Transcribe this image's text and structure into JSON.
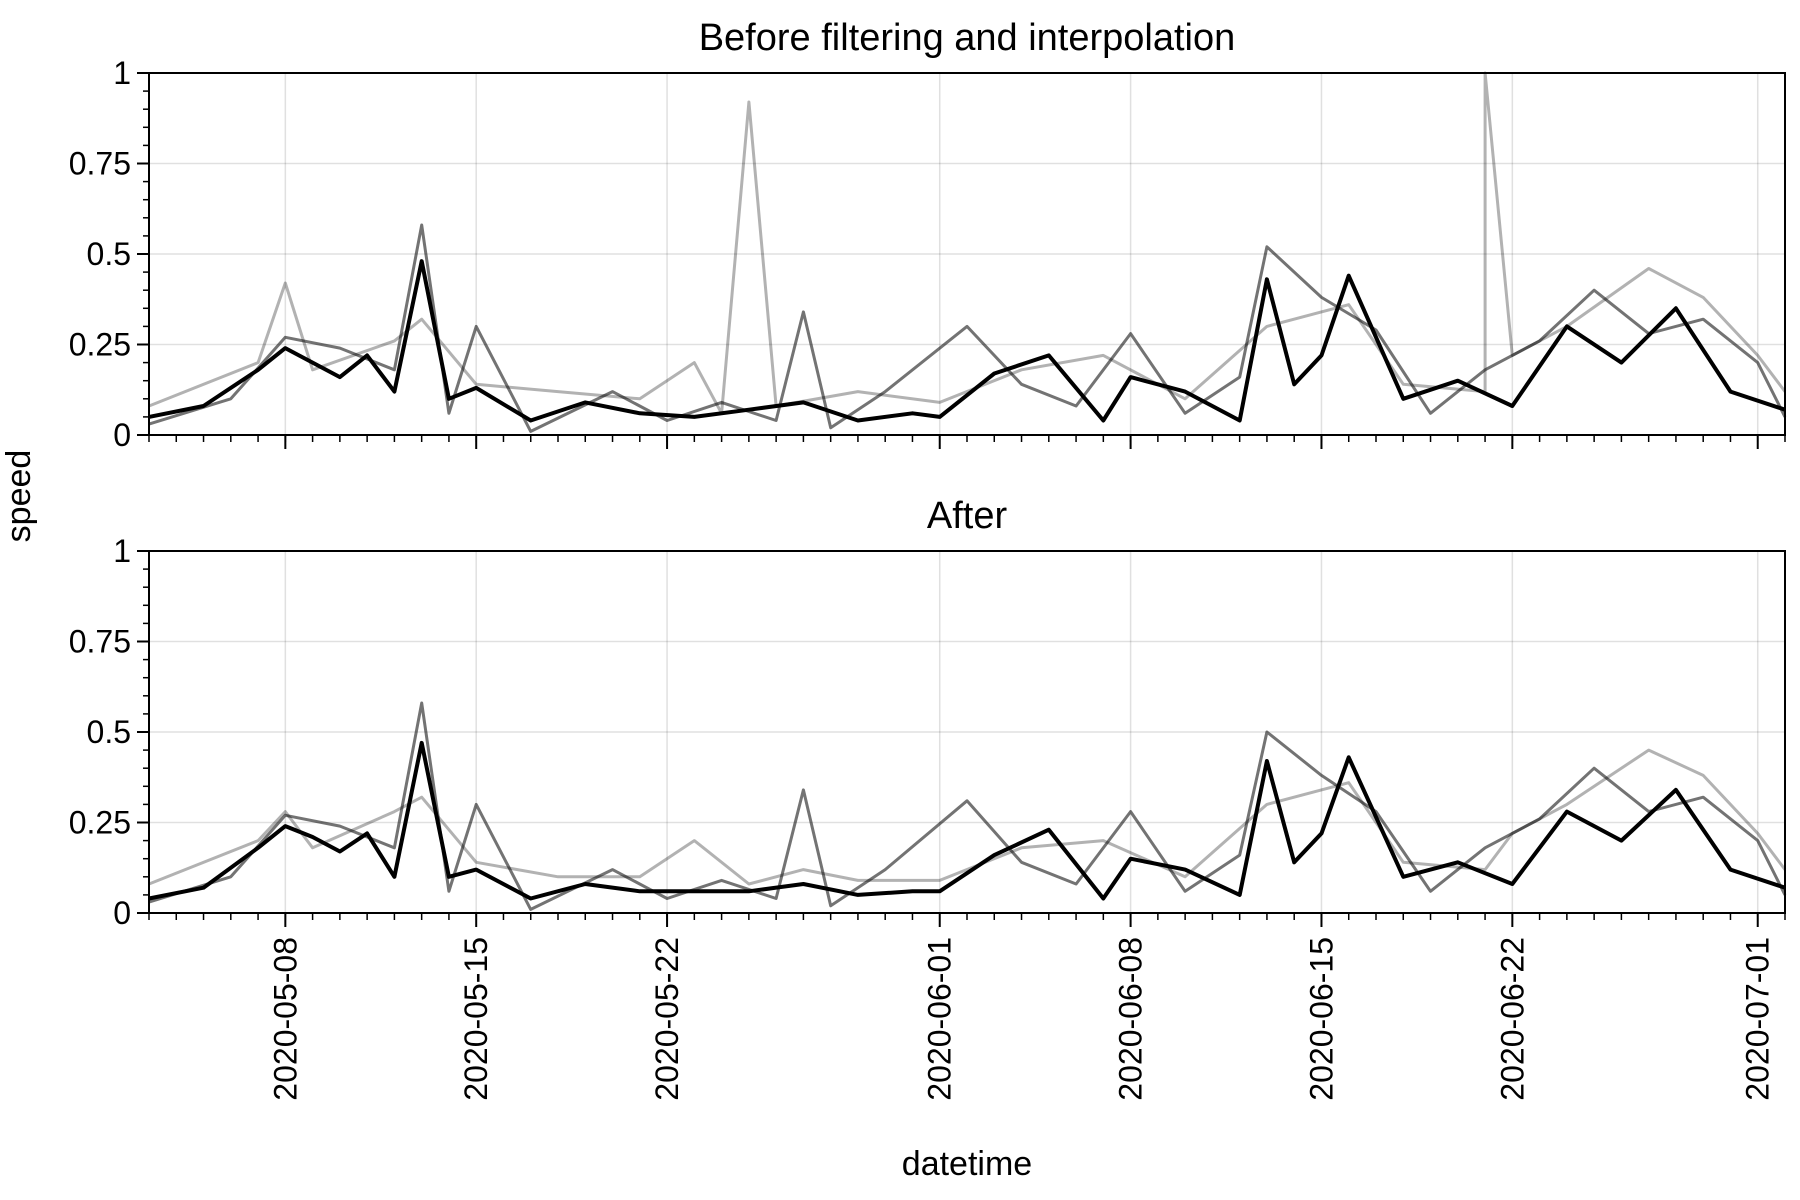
{
  "chart_data": [
    {
      "type": "line",
      "title": "Before filtering and interpolation",
      "ylim": [
        0,
        1
      ],
      "yticks": [
        "0",
        "0.25",
        "0.5",
        "0.75",
        "1"
      ],
      "xlim": [
        "2020-05-03",
        "2020-07-02"
      ],
      "grid": true,
      "x_tick_labels_shown": false,
      "series": [
        {
          "color": "#000000",
          "opacity": 1.0,
          "points": [
            [
              "2020-05-03",
              0.05
            ],
            [
              "2020-05-05",
              0.08
            ],
            [
              "2020-05-07",
              0.18
            ],
            [
              "2020-05-08",
              0.24
            ],
            [
              "2020-05-09",
              0.2
            ],
            [
              "2020-05-10",
              0.16
            ],
            [
              "2020-05-11",
              0.22
            ],
            [
              "2020-05-12",
              0.12
            ],
            [
              "2020-05-13",
              0.48
            ],
            [
              "2020-05-14",
              0.1
            ],
            [
              "2020-05-15",
              0.13
            ],
            [
              "2020-05-17",
              0.04
            ],
            [
              "2020-05-19",
              0.09
            ],
            [
              "2020-05-21",
              0.06
            ],
            [
              "2020-05-23",
              0.05
            ],
            [
              "2020-05-25",
              0.07
            ],
            [
              "2020-05-27",
              0.09
            ],
            [
              "2020-05-29",
              0.04
            ],
            [
              "2020-05-31",
              0.06
            ],
            [
              "2020-06-01",
              0.05
            ],
            [
              "2020-06-03",
              0.17
            ],
            [
              "2020-06-05",
              0.22
            ],
            [
              "2020-06-07",
              0.04
            ],
            [
              "2020-06-08",
              0.16
            ],
            [
              "2020-06-10",
              0.12
            ],
            [
              "2020-06-12",
              0.04
            ],
            [
              "2020-06-13",
              0.43
            ],
            [
              "2020-06-14",
              0.14
            ],
            [
              "2020-06-15",
              0.22
            ],
            [
              "2020-06-16",
              0.44
            ],
            [
              "2020-06-18",
              0.1
            ],
            [
              "2020-06-20",
              0.15
            ],
            [
              "2020-06-22",
              0.08
            ],
            [
              "2020-06-24",
              0.3
            ],
            [
              "2020-06-26",
              0.2
            ],
            [
              "2020-06-28",
              0.35
            ],
            [
              "2020-06-30",
              0.12
            ],
            [
              "2020-07-02",
              0.07
            ]
          ]
        },
        {
          "color": "#000000",
          "opacity": 0.55,
          "points": [
            [
              "2020-05-03",
              0.03
            ],
            [
              "2020-05-06",
              0.1
            ],
            [
              "2020-05-08",
              0.27
            ],
            [
              "2020-05-10",
              0.24
            ],
            [
              "2020-05-12",
              0.18
            ],
            [
              "2020-05-13",
              0.58
            ],
            [
              "2020-05-14",
              0.06
            ],
            [
              "2020-05-15",
              0.3
            ],
            [
              "2020-05-17",
              0.01
            ],
            [
              "2020-05-20",
              0.12
            ],
            [
              "2020-05-22",
              0.04
            ],
            [
              "2020-05-24",
              0.09
            ],
            [
              "2020-05-26",
              0.04
            ],
            [
              "2020-05-27",
              0.34
            ],
            [
              "2020-05-28",
              0.02
            ],
            [
              "2020-05-30",
              0.12
            ],
            [
              "2020-06-02",
              0.3
            ],
            [
              "2020-06-04",
              0.14
            ],
            [
              "2020-06-06",
              0.08
            ],
            [
              "2020-06-08",
              0.28
            ],
            [
              "2020-06-10",
              0.06
            ],
            [
              "2020-06-12",
              0.16
            ],
            [
              "2020-06-13",
              0.52
            ],
            [
              "2020-06-15",
              0.38
            ],
            [
              "2020-06-17",
              0.29
            ],
            [
              "2020-06-19",
              0.06
            ],
            [
              "2020-06-21",
              0.18
            ],
            [
              "2020-06-23",
              0.26
            ],
            [
              "2020-06-25",
              0.4
            ],
            [
              "2020-06-27",
              0.28
            ],
            [
              "2020-06-29",
              0.32
            ],
            [
              "2020-07-01",
              0.2
            ],
            [
              "2020-07-02",
              0.05
            ]
          ]
        },
        {
          "color": "#000000",
          "opacity": 0.3,
          "points": [
            [
              "2020-05-03",
              0.08
            ],
            [
              "2020-05-07",
              0.2
            ],
            [
              "2020-05-08",
              0.42
            ],
            [
              "2020-05-09",
              0.18
            ],
            [
              "2020-05-12",
              0.26
            ],
            [
              "2020-05-13",
              0.32
            ],
            [
              "2020-05-15",
              0.14
            ],
            [
              "2020-05-18",
              0.12
            ],
            [
              "2020-05-21",
              0.1
            ],
            [
              "2020-05-23",
              0.2
            ],
            [
              "2020-05-24",
              0.06
            ],
            [
              "2020-05-25",
              0.92
            ],
            [
              "2020-05-26",
              0.08
            ],
            [
              "2020-05-29",
              0.12
            ],
            [
              "2020-06-01",
              0.09
            ],
            [
              "2020-06-04",
              0.18
            ],
            [
              "2020-06-07",
              0.22
            ],
            [
              "2020-06-10",
              0.1
            ],
            [
              "2020-06-13",
              0.3
            ],
            [
              "2020-06-16",
              0.36
            ],
            [
              "2020-06-18",
              0.14
            ],
            [
              "2020-06-21",
              0.12
            ],
            [
              "2020-06-21",
              1.0
            ],
            [
              "2020-06-22",
              0.22
            ],
            [
              "2020-06-24",
              0.3
            ],
            [
              "2020-06-27",
              0.46
            ],
            [
              "2020-06-29",
              0.38
            ],
            [
              "2020-07-01",
              0.22
            ],
            [
              "2020-07-02",
              0.12
            ]
          ]
        }
      ]
    },
    {
      "type": "line",
      "title": "After",
      "ylim": [
        0,
        1
      ],
      "yticks": [
        "0",
        "0.25",
        "0.5",
        "0.75",
        "1"
      ],
      "xlim": [
        "2020-05-03",
        "2020-07-02"
      ],
      "grid": true,
      "ylabel": "speed",
      "xlabel": "datetime",
      "x_tick_labels": [
        "2020-05-08",
        "2020-05-15",
        "2020-05-22",
        "2020-06-01",
        "2020-06-08",
        "2020-06-15",
        "2020-06-22",
        "2020-07-01"
      ],
      "series": [
        {
          "color": "#000000",
          "opacity": 1.0,
          "points": [
            [
              "2020-05-03",
              0.04
            ],
            [
              "2020-05-05",
              0.07
            ],
            [
              "2020-05-07",
              0.18
            ],
            [
              "2020-05-08",
              0.24
            ],
            [
              "2020-05-09",
              0.21
            ],
            [
              "2020-05-10",
              0.17
            ],
            [
              "2020-05-11",
              0.22
            ],
            [
              "2020-05-12",
              0.1
            ],
            [
              "2020-05-13",
              0.47
            ],
            [
              "2020-05-14",
              0.1
            ],
            [
              "2020-05-15",
              0.12
            ],
            [
              "2020-05-17",
              0.04
            ],
            [
              "2020-05-19",
              0.08
            ],
            [
              "2020-05-21",
              0.06
            ],
            [
              "2020-05-23",
              0.06
            ],
            [
              "2020-05-25",
              0.06
            ],
            [
              "2020-05-27",
              0.08
            ],
            [
              "2020-05-29",
              0.05
            ],
            [
              "2020-05-31",
              0.06
            ],
            [
              "2020-06-01",
              0.06
            ],
            [
              "2020-06-03",
              0.16
            ],
            [
              "2020-06-05",
              0.23
            ],
            [
              "2020-06-07",
              0.04
            ],
            [
              "2020-06-08",
              0.15
            ],
            [
              "2020-06-10",
              0.12
            ],
            [
              "2020-06-12",
              0.05
            ],
            [
              "2020-06-13",
              0.42
            ],
            [
              "2020-06-14",
              0.14
            ],
            [
              "2020-06-15",
              0.22
            ],
            [
              "2020-06-16",
              0.43
            ],
            [
              "2020-06-18",
              0.1
            ],
            [
              "2020-06-20",
              0.14
            ],
            [
              "2020-06-22",
              0.08
            ],
            [
              "2020-06-24",
              0.28
            ],
            [
              "2020-06-26",
              0.2
            ],
            [
              "2020-06-28",
              0.34
            ],
            [
              "2020-06-30",
              0.12
            ],
            [
              "2020-07-02",
              0.07
            ]
          ]
        },
        {
          "color": "#000000",
          "opacity": 0.55,
          "points": [
            [
              "2020-05-03",
              0.03
            ],
            [
              "2020-05-06",
              0.1
            ],
            [
              "2020-05-08",
              0.27
            ],
            [
              "2020-05-10",
              0.24
            ],
            [
              "2020-05-12",
              0.18
            ],
            [
              "2020-05-13",
              0.58
            ],
            [
              "2020-05-14",
              0.06
            ],
            [
              "2020-05-15",
              0.3
            ],
            [
              "2020-05-17",
              0.01
            ],
            [
              "2020-05-20",
              0.12
            ],
            [
              "2020-05-22",
              0.04
            ],
            [
              "2020-05-24",
              0.09
            ],
            [
              "2020-05-26",
              0.04
            ],
            [
              "2020-05-27",
              0.34
            ],
            [
              "2020-05-28",
              0.02
            ],
            [
              "2020-05-30",
              0.12
            ],
            [
              "2020-06-02",
              0.31
            ],
            [
              "2020-06-04",
              0.14
            ],
            [
              "2020-06-06",
              0.08
            ],
            [
              "2020-06-08",
              0.28
            ],
            [
              "2020-06-10",
              0.06
            ],
            [
              "2020-06-12",
              0.16
            ],
            [
              "2020-06-13",
              0.5
            ],
            [
              "2020-06-15",
              0.38
            ],
            [
              "2020-06-17",
              0.28
            ],
            [
              "2020-06-19",
              0.06
            ],
            [
              "2020-06-21",
              0.18
            ],
            [
              "2020-06-23",
              0.26
            ],
            [
              "2020-06-25",
              0.4
            ],
            [
              "2020-06-27",
              0.28
            ],
            [
              "2020-06-29",
              0.32
            ],
            [
              "2020-07-01",
              0.2
            ],
            [
              "2020-07-02",
              0.05
            ]
          ]
        },
        {
          "color": "#000000",
          "opacity": 0.3,
          "points": [
            [
              "2020-05-03",
              0.08
            ],
            [
              "2020-05-07",
              0.2
            ],
            [
              "2020-05-08",
              0.28
            ],
            [
              "2020-05-09",
              0.18
            ],
            [
              "2020-05-12",
              0.28
            ],
            [
              "2020-05-13",
              0.32
            ],
            [
              "2020-05-15",
              0.14
            ],
            [
              "2020-05-18",
              0.1
            ],
            [
              "2020-05-21",
              0.1
            ],
            [
              "2020-05-23",
              0.2
            ],
            [
              "2020-05-25",
              0.08
            ],
            [
              "2020-05-27",
              0.12
            ],
            [
              "2020-05-29",
              0.09
            ],
            [
              "2020-06-01",
              0.09
            ],
            [
              "2020-06-04",
              0.18
            ],
            [
              "2020-06-07",
              0.2
            ],
            [
              "2020-06-10",
              0.1
            ],
            [
              "2020-06-13",
              0.3
            ],
            [
              "2020-06-16",
              0.36
            ],
            [
              "2020-06-18",
              0.14
            ],
            [
              "2020-06-21",
              0.12
            ],
            [
              "2020-06-22",
              0.22
            ],
            [
              "2020-06-24",
              0.3
            ],
            [
              "2020-06-27",
              0.45
            ],
            [
              "2020-06-29",
              0.38
            ],
            [
              "2020-07-01",
              0.22
            ],
            [
              "2020-07-02",
              0.12
            ]
          ]
        }
      ]
    }
  ]
}
